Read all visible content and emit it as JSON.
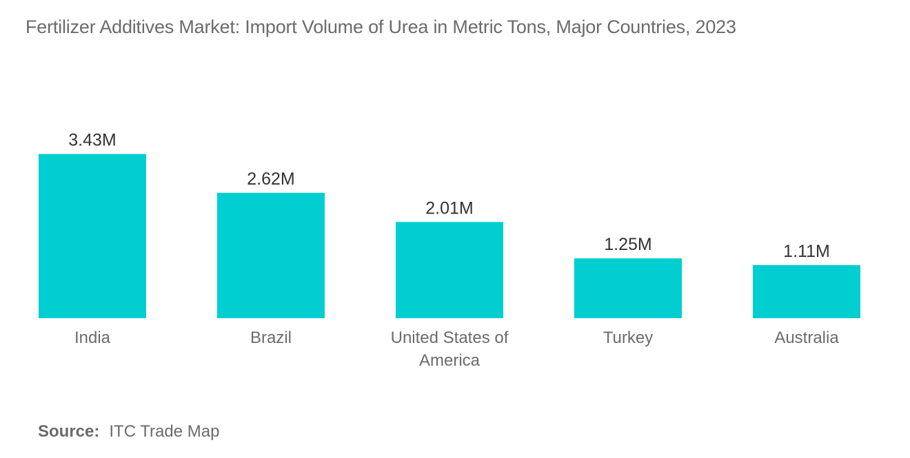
{
  "title": "Fertilizer Additives Market: Import Volume of Urea in Metric Tons, Major Countries, 2023",
  "source": {
    "label": "Source:",
    "text": "ITC Trade Map"
  },
  "colors": {
    "bar": "#00CED1",
    "text": "#6b6b6b",
    "label": "#333333"
  },
  "chart_data": {
    "type": "bar",
    "title": "Fertilizer Additives Market: Import Volume of Urea in Metric Tons, Major Countries, 2023",
    "categories": [
      "India",
      "Brazil",
      "United States of America",
      "Turkey",
      "Australia"
    ],
    "category_lines": [
      [
        "India"
      ],
      [
        "Brazil"
      ],
      [
        "United States of",
        "America"
      ],
      [
        "Turkey"
      ],
      [
        "Australia"
      ]
    ],
    "values": [
      3.43,
      2.62,
      2.01,
      1.25,
      1.11
    ],
    "value_labels": [
      "3.43M",
      "2.62M",
      "2.01M",
      "1.25M",
      "1.11M"
    ],
    "unit": "M",
    "xlabel": "",
    "ylabel": "",
    "grid": false,
    "legend": "none"
  }
}
